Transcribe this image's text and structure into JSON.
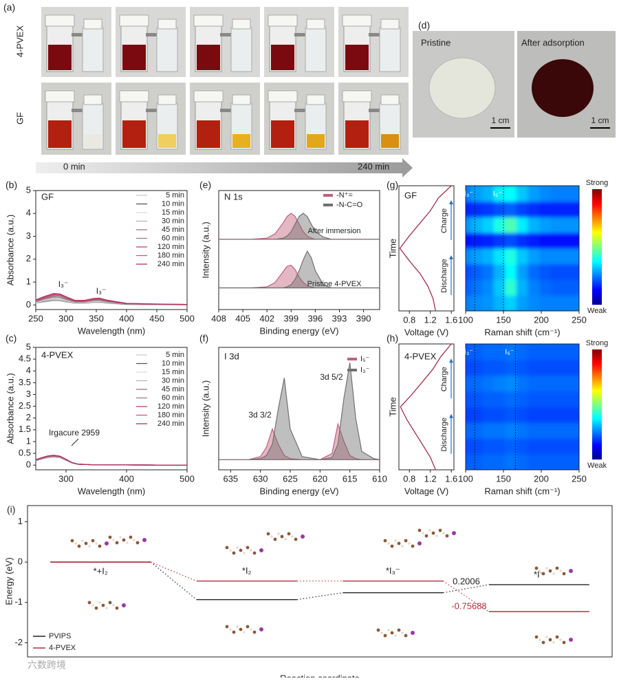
{
  "panel_a": {
    "label": "(a)",
    "rows": [
      "4-PVEX",
      "GF"
    ],
    "start": "0 min",
    "end": "240 min"
  },
  "panel_d": {
    "label": "(d)",
    "captions": [
      "Pristine",
      "After adsorption"
    ],
    "scale_bars": [
      "1 cm",
      "1 cm"
    ]
  },
  "watermark": "六数跨境",
  "chart_data": [
    {
      "type": "line",
      "panel_label": "(b)",
      "title": "GF",
      "x_label": "Wavelength (nm)",
      "y_label": "Absorbance (a.u.)",
      "x": [
        250,
        265,
        280,
        290,
        300,
        315,
        330,
        345,
        355,
        370,
        400,
        450,
        500
      ],
      "xlim": [
        250,
        500
      ],
      "xticks": [
        250,
        300,
        350,
        400,
        450,
        500
      ],
      "ylim": [
        -0.2,
        5
      ],
      "yticks": [
        0,
        1,
        2,
        3,
        4,
        5
      ],
      "annotations": [
        "I₃⁻",
        "I₃⁻"
      ],
      "series": [
        {
          "name": "5 min",
          "color": "#c9c9c9",
          "values": [
            0.08,
            0.13,
            0.18,
            0.17,
            0.13,
            0.07,
            0.07,
            0.1,
            0.11,
            0.07,
            0.02,
            0.01,
            0.01
          ]
        },
        {
          "name": "10 min",
          "color": "#555555",
          "values": [
            0.1,
            0.17,
            0.23,
            0.22,
            0.16,
            0.09,
            0.09,
            0.13,
            0.14,
            0.09,
            0.03,
            0.02,
            0.01
          ]
        },
        {
          "name": "15 min",
          "color": "#dcdcdc",
          "values": [
            0.11,
            0.19,
            0.25,
            0.24,
            0.18,
            0.1,
            0.1,
            0.14,
            0.15,
            0.1,
            0.04,
            0.02,
            0.01
          ]
        },
        {
          "name": "30 min",
          "color": "#b5b5b5",
          "values": [
            0.13,
            0.23,
            0.3,
            0.29,
            0.22,
            0.12,
            0.12,
            0.17,
            0.18,
            0.12,
            0.04,
            0.02,
            0.01
          ]
        },
        {
          "name": "45 min",
          "color": "#8f7a84",
          "values": [
            0.15,
            0.27,
            0.35,
            0.34,
            0.25,
            0.14,
            0.14,
            0.2,
            0.21,
            0.14,
            0.05,
            0.03,
            0.01
          ]
        },
        {
          "name": "60 min",
          "color": "#a0788a",
          "values": [
            0.17,
            0.29,
            0.38,
            0.36,
            0.27,
            0.15,
            0.15,
            0.21,
            0.23,
            0.15,
            0.05,
            0.03,
            0.02
          ]
        },
        {
          "name": "120 min",
          "color": "#b8446a",
          "values": [
            0.19,
            0.32,
            0.43,
            0.41,
            0.31,
            0.17,
            0.17,
            0.24,
            0.26,
            0.17,
            0.06,
            0.03,
            0.02
          ]
        },
        {
          "name": "180 min",
          "color": "#c75a7c",
          "values": [
            0.2,
            0.35,
            0.47,
            0.45,
            0.33,
            0.19,
            0.19,
            0.26,
            0.28,
            0.19,
            0.07,
            0.04,
            0.02
          ]
        },
        {
          "name": "240 min",
          "color": "#b0305a",
          "values": [
            0.22,
            0.38,
            0.5,
            0.48,
            0.36,
            0.2,
            0.2,
            0.28,
            0.3,
            0.2,
            0.07,
            0.04,
            0.02
          ]
        }
      ]
    },
    {
      "type": "line",
      "panel_label": "(c)",
      "title": "4-PVEX",
      "x_label": "Wavelength (nm)",
      "y_label": "Absorbance (a.u.)",
      "x": [
        250,
        260,
        270,
        280,
        290,
        300,
        310,
        320,
        340,
        370,
        400,
        450,
        500
      ],
      "xlim": [
        250,
        500
      ],
      "xticks": [
        300,
        400,
        500
      ],
      "ylim": [
        -0.2,
        5
      ],
      "yticks": [
        0,
        0.5,
        1,
        1.5,
        2,
        2.5,
        3,
        3.5,
        4,
        4.5,
        5
      ],
      "annotations": [
        "Irgacure 2959"
      ],
      "series": [
        {
          "name": "5 min",
          "color": "#c9c9c9",
          "values": [
            0.19,
            0.26,
            0.31,
            0.34,
            0.31,
            0.2,
            0.09,
            0.03,
            0.02,
            0.01,
            0.01,
            0,
            0
          ]
        },
        {
          "name": "10 min",
          "color": "#555555",
          "values": [
            0.19,
            0.26,
            0.33,
            0.35,
            0.32,
            0.21,
            0.09,
            0.04,
            0.02,
            0.01,
            0.01,
            0,
            0
          ]
        },
        {
          "name": "15 min",
          "color": "#dcdcdc",
          "values": [
            0.2,
            0.27,
            0.33,
            0.36,
            0.32,
            0.22,
            0.09,
            0.04,
            0.02,
            0.01,
            0.01,
            0,
            0
          ]
        },
        {
          "name": "30 min",
          "color": "#b5b5b5",
          "values": [
            0.2,
            0.28,
            0.34,
            0.37,
            0.33,
            0.22,
            0.09,
            0.04,
            0.02,
            0.01,
            0.01,
            0,
            0
          ]
        },
        {
          "name": "45 min",
          "color": "#8f7a84",
          "values": [
            0.21,
            0.29,
            0.35,
            0.38,
            0.34,
            0.23,
            0.1,
            0.04,
            0.02,
            0.01,
            0.01,
            0,
            0
          ]
        },
        {
          "name": "60 min",
          "color": "#a0788a",
          "values": [
            0.21,
            0.29,
            0.36,
            0.39,
            0.35,
            0.23,
            0.1,
            0.04,
            0.02,
            0.01,
            0.01,
            0,
            0
          ]
        },
        {
          "name": "120 min",
          "color": "#b8446a",
          "values": [
            0.22,
            0.3,
            0.37,
            0.4,
            0.36,
            0.24,
            0.1,
            0.04,
            0.02,
            0.01,
            0.01,
            0,
            0
          ]
        },
        {
          "name": "180 min",
          "color": "#c75a7c",
          "values": [
            0.22,
            0.31,
            0.38,
            0.41,
            0.37,
            0.24,
            0.1,
            0.04,
            0.02,
            0.01,
            0.01,
            0,
            0
          ]
        },
        {
          "name": "240 min",
          "color": "#b0305a",
          "values": [
            0.23,
            0.32,
            0.39,
            0.42,
            0.38,
            0.25,
            0.11,
            0.04,
            0.02,
            0.01,
            0.01,
            0,
            0
          ]
        }
      ]
    },
    {
      "type": "spectrum",
      "panel_label": "(e)",
      "title": "N 1s",
      "x_label": "Binding energy (eV)",
      "y_label": "Intensity (a.u.)",
      "x": [
        408,
        404,
        402,
        401,
        400,
        399.5,
        399,
        398.5,
        398,
        397.5,
        397,
        396.5,
        396,
        395,
        394,
        392,
        388
      ],
      "xlim": [
        408,
        388
      ],
      "xticks": [
        408,
        405,
        402,
        399,
        396,
        393,
        390
      ],
      "ylim": [
        0,
        11
      ],
      "series": [
        {
          "name": "-N⁺=",
          "color": "#c0607a"
        },
        {
          "name": "-N-C=O",
          "color": "#707070"
        }
      ],
      "spectra": [
        {
          "label": "After immersion",
          "components": [
            {
              "values": [
                6.5,
                6.5,
                6.6,
                7.0,
                8.0,
                8.6,
                8.9,
                8.6,
                7.9,
                7.2,
                6.8,
                6.6,
                6.5,
                6.5,
                6.5,
                6.5,
                6.5
              ]
            },
            {
              "values": [
                6.5,
                6.5,
                6.5,
                6.5,
                6.6,
                6.8,
                7.2,
                7.9,
                8.6,
                8.9,
                8.6,
                7.9,
                7.2,
                6.7,
                6.5,
                6.5,
                6.5
              ]
            }
          ]
        },
        {
          "label": "Pristine 4-PVEX",
          "components": [
            {
              "values": [
                2,
                2,
                2.1,
                2.5,
                3.5,
                4.0,
                4.1,
                3.7,
                3.0,
                2.5,
                2.2,
                2.1,
                2,
                2,
                2,
                2,
                2
              ]
            },
            {
              "values": [
                2,
                2,
                2,
                2,
                2,
                2.1,
                2.3,
                2.8,
                3.6,
                4.6,
                5.4,
                4.8,
                3.6,
                2.3,
                2,
                2,
                2
              ]
            }
          ]
        }
      ]
    },
    {
      "type": "spectrum",
      "panel_label": "(f)",
      "title": "I 3d",
      "x_label": "Binding energy (eV)",
      "y_label": "Intensity (a.u.)",
      "x": [
        637,
        632,
        630,
        629,
        628,
        627,
        626,
        625,
        623,
        620,
        618,
        617,
        616,
        615,
        614,
        613,
        611,
        610
      ],
      "xlim": [
        637,
        610
      ],
      "xticks": [
        635,
        630,
        625,
        620,
        615,
        610
      ],
      "ylim": [
        0,
        12
      ],
      "annotations": [
        "3d 3/2",
        "3d 5/2"
      ],
      "series": [
        {
          "name": "I₅⁻",
          "color": "#c0607a",
          "values": [
            1,
            1,
            1.3,
            2.2,
            4,
            2.5,
            1.4,
            1.1,
            1,
            1,
            1.6,
            4.5,
            2.8,
            1.4,
            1.1,
            1,
            1,
            1
          ]
        },
        {
          "name": "I₃⁻",
          "color": "#707070",
          "values": [
            1,
            1,
            1.1,
            1.4,
            2.5,
            6,
            9,
            4,
            1.3,
            1,
            1.2,
            2.5,
            7,
            10.5,
            5,
            1.8,
            1.1,
            1
          ]
        }
      ]
    },
    {
      "type": "heatmap",
      "panel_label": "(g)",
      "title": "GF",
      "annotations": [
        "Charge",
        "Discharge"
      ],
      "colorbar": {
        "high": "Strong",
        "low": "Weak"
      },
      "voltage": {
        "x_label": "Voltage (V)",
        "y_label": "Time",
        "xlim": [
          0.6,
          1.65
        ],
        "xticks": [
          0.8,
          1.2,
          1.6
        ],
        "ylim": [
          0,
          10
        ],
        "color": "#a0304a",
        "time": [
          0,
          1,
          2,
          3,
          4,
          5,
          6,
          7,
          8,
          9,
          10
        ],
        "values": [
          1.3,
          1.25,
          1.15,
          1.0,
          0.8,
          0.62,
          0.8,
          1.0,
          1.2,
          1.35,
          1.6
        ]
      },
      "raman": {
        "x_label": "Raman shift (cm⁻¹)",
        "xlim": [
          100,
          250
        ],
        "xticks": [
          100,
          150,
          200,
          250
        ],
        "x": [
          100,
          115,
          130,
          145,
          160,
          175,
          190,
          205,
          220,
          235,
          250
        ],
        "reference_lines": [
          {
            "label": "I₃⁻",
            "x": 112
          },
          {
            "label": "I₅⁻",
            "x": 150
          }
        ],
        "matrix": [
          [
            0.25,
            0.26,
            0.27,
            0.3,
            0.33,
            0.28,
            0.26,
            0.25,
            0.25,
            0.25,
            0.25
          ],
          [
            0.22,
            0.24,
            0.26,
            0.32,
            0.42,
            0.3,
            0.25,
            0.23,
            0.22,
            0.22,
            0.22
          ],
          [
            0.2,
            0.22,
            0.24,
            0.3,
            0.38,
            0.28,
            0.23,
            0.21,
            0.2,
            0.2,
            0.2
          ],
          [
            0.26,
            0.28,
            0.3,
            0.35,
            0.4,
            0.32,
            0.28,
            0.26,
            0.26,
            0.26,
            0.26
          ],
          [
            0.14,
            0.15,
            0.16,
            0.18,
            0.2,
            0.17,
            0.15,
            0.14,
            0.14,
            0.14,
            0.14
          ],
          [
            0.27,
            0.3,
            0.33,
            0.4,
            0.45,
            0.36,
            0.3,
            0.28,
            0.27,
            0.27,
            0.27
          ],
          [
            0.16,
            0.17,
            0.18,
            0.2,
            0.22,
            0.19,
            0.17,
            0.16,
            0.16,
            0.16,
            0.16
          ],
          [
            0.25,
            0.28,
            0.3,
            0.36,
            0.38,
            0.32,
            0.28,
            0.26,
            0.25,
            0.25,
            0.25
          ]
        ]
      }
    },
    {
      "type": "heatmap",
      "panel_label": "(h)",
      "title": "4-PVEX",
      "annotations": [
        "Charge",
        "Discharge"
      ],
      "colorbar": {
        "high": "Strong",
        "low": "Weak"
      },
      "voltage": {
        "x_label": "Voltage (V)",
        "y_label": "Time",
        "xlim": [
          0.6,
          1.65
        ],
        "xticks": [
          0.8,
          1.2,
          1.6
        ],
        "ylim": [
          0,
          10
        ],
        "color": "#a0304a",
        "time": [
          0,
          1,
          2,
          3,
          4,
          5,
          6,
          7,
          8,
          9,
          10
        ],
        "values": [
          1.3,
          1.2,
          1.05,
          0.9,
          0.75,
          0.63,
          0.85,
          1.05,
          1.25,
          1.4,
          1.6
        ]
      },
      "raman": {
        "x_label": "Raman shift (cm⁻¹)",
        "xlim": [
          100,
          250
        ],
        "xticks": [
          100,
          150,
          200,
          250
        ],
        "x": [
          100,
          115,
          130,
          145,
          160,
          175,
          190,
          205,
          220,
          235,
          250
        ],
        "reference_lines": [
          {
            "label": "I₃⁻",
            "x": 112
          },
          {
            "label": "I₅⁻",
            "x": 166
          }
        ],
        "matrix": [
          [
            0.22,
            0.22,
            0.23,
            0.23,
            0.24,
            0.23,
            0.22,
            0.22,
            0.22,
            0.22,
            0.22
          ],
          [
            0.2,
            0.2,
            0.21,
            0.21,
            0.22,
            0.21,
            0.2,
            0.2,
            0.2,
            0.2,
            0.2
          ],
          [
            0.23,
            0.23,
            0.24,
            0.24,
            0.25,
            0.24,
            0.23,
            0.23,
            0.23,
            0.23,
            0.23
          ],
          [
            0.19,
            0.19,
            0.2,
            0.2,
            0.21,
            0.2,
            0.19,
            0.19,
            0.19,
            0.19,
            0.19
          ],
          [
            0.21,
            0.21,
            0.22,
            0.22,
            0.23,
            0.22,
            0.21,
            0.21,
            0.21,
            0.21,
            0.21
          ],
          [
            0.23,
            0.23,
            0.24,
            0.25,
            0.26,
            0.24,
            0.23,
            0.23,
            0.23,
            0.23,
            0.23
          ],
          [
            0.2,
            0.2,
            0.21,
            0.21,
            0.22,
            0.21,
            0.2,
            0.2,
            0.2,
            0.2,
            0.2
          ],
          [
            0.22,
            0.22,
            0.23,
            0.23,
            0.24,
            0.23,
            0.22,
            0.22,
            0.22,
            0.22,
            0.22
          ]
        ]
      }
    },
    {
      "type": "level",
      "panel_label": "(i)",
      "x_label": "Reaction coordinate",
      "y_label": "Energy (eV)",
      "categories": [
        "*+I₂",
        "*I₂",
        "*I₃⁻",
        "*I⁻"
      ],
      "ylim": [
        -2.35,
        1.4
      ],
      "yticks": [
        -2,
        -1,
        0,
        1
      ],
      "annotations": [
        {
          "text": "0.2006",
          "color": "#222222"
        },
        {
          "text": "-0.75688",
          "color": "#b0303a"
        }
      ],
      "series": [
        {
          "name": "PVIPS",
          "color": "#222222",
          "values": [
            0,
            -0.93,
            -0.76,
            -0.56
          ]
        },
        {
          "name": "4-PVEX",
          "color": "#b0303a",
          "values": [
            0,
            -0.47,
            -0.47,
            -1.227
          ]
        }
      ]
    }
  ]
}
